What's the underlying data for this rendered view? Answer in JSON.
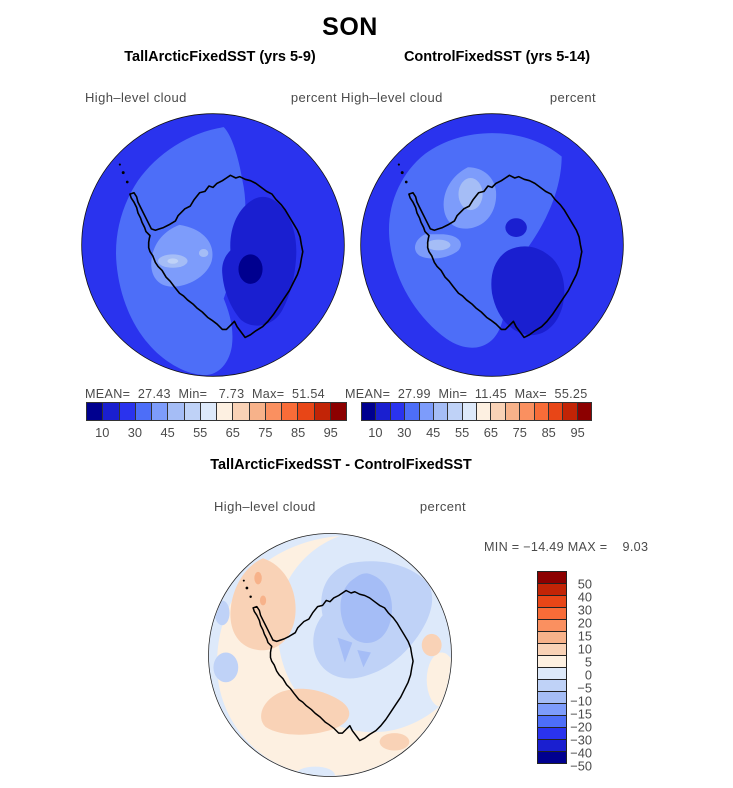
{
  "header": {
    "title": "SON"
  },
  "panels": [
    {
      "title": "TallArcticFixedSST (yrs 5-9)",
      "field": "High–level cloud",
      "units": "percent",
      "stats": "MEAN=  27.43  Min=   7.73  Max=  51.54"
    },
    {
      "title": "ControlFixedSST (yrs 5-14)",
      "field": "High–level cloud",
      "units": "percent",
      "stats": "MEAN=  27.99  Min=  11.45  Max=  55.25"
    }
  ],
  "diff": {
    "title": "TallArcticFixedSST - ControlFixedSST",
    "field": "High–level cloud",
    "units": "percent",
    "minmax": "MIN = −14.49 MAX =    9.03"
  },
  "colorbar": {
    "palette": [
      "#00008f",
      "#1a1fd0",
      "#2a33ee",
      "#4d6ef8",
      "#7d9cfb",
      "#a5bdf6",
      "#bfd2f7",
      "#dde9fa",
      "#fdf0e1",
      "#f9d2b6",
      "#f7b28a",
      "#fa9060",
      "#f86c38",
      "#e84617",
      "#c22406",
      "#8c0000"
    ],
    "h_ticks": [
      "10",
      "30",
      "45",
      "55",
      "65",
      "75",
      "85",
      "95"
    ],
    "v_ticks": [
      "50",
      "40",
      "30",
      "20",
      "15",
      "10",
      "5",
      "0",
      "−5",
      "−10",
      "−15",
      "−20",
      "−30",
      "−40",
      "−50"
    ]
  },
  "chart_data": {
    "type": "heatmap",
    "title": "SON",
    "variable": "High-level cloud",
    "units": "percent",
    "projection": "south polar stereographic (Antarctica)",
    "panels": [
      {
        "name": "TallArcticFixedSST (yrs 5-9)",
        "mean": 27.43,
        "min": 7.73,
        "max": 51.54,
        "contour_levels": [
          10,
          20,
          30,
          40,
          45,
          50,
          55,
          60,
          65,
          70,
          75,
          80,
          85,
          90,
          95
        ]
      },
      {
        "name": "ControlFixedSST (yrs 5-14)",
        "mean": 27.99,
        "min": 11.45,
        "max": 55.25,
        "contour_levels": [
          10,
          20,
          30,
          40,
          45,
          50,
          55,
          60,
          65,
          70,
          75,
          80,
          85,
          90,
          95
        ]
      },
      {
        "name": "TallArcticFixedSST - ControlFixedSST",
        "min": -14.49,
        "max": 9.03,
        "contour_levels": [
          -50,
          -40,
          -30,
          -20,
          -15,
          -10,
          -5,
          0,
          5,
          10,
          15,
          20,
          30,
          40,
          50
        ]
      }
    ],
    "colormap": "16-class blue-white-red diverging",
    "legend_position": {
      "panel_maps": "horizontal bar below",
      "difference_map": "vertical bar right"
    }
  }
}
